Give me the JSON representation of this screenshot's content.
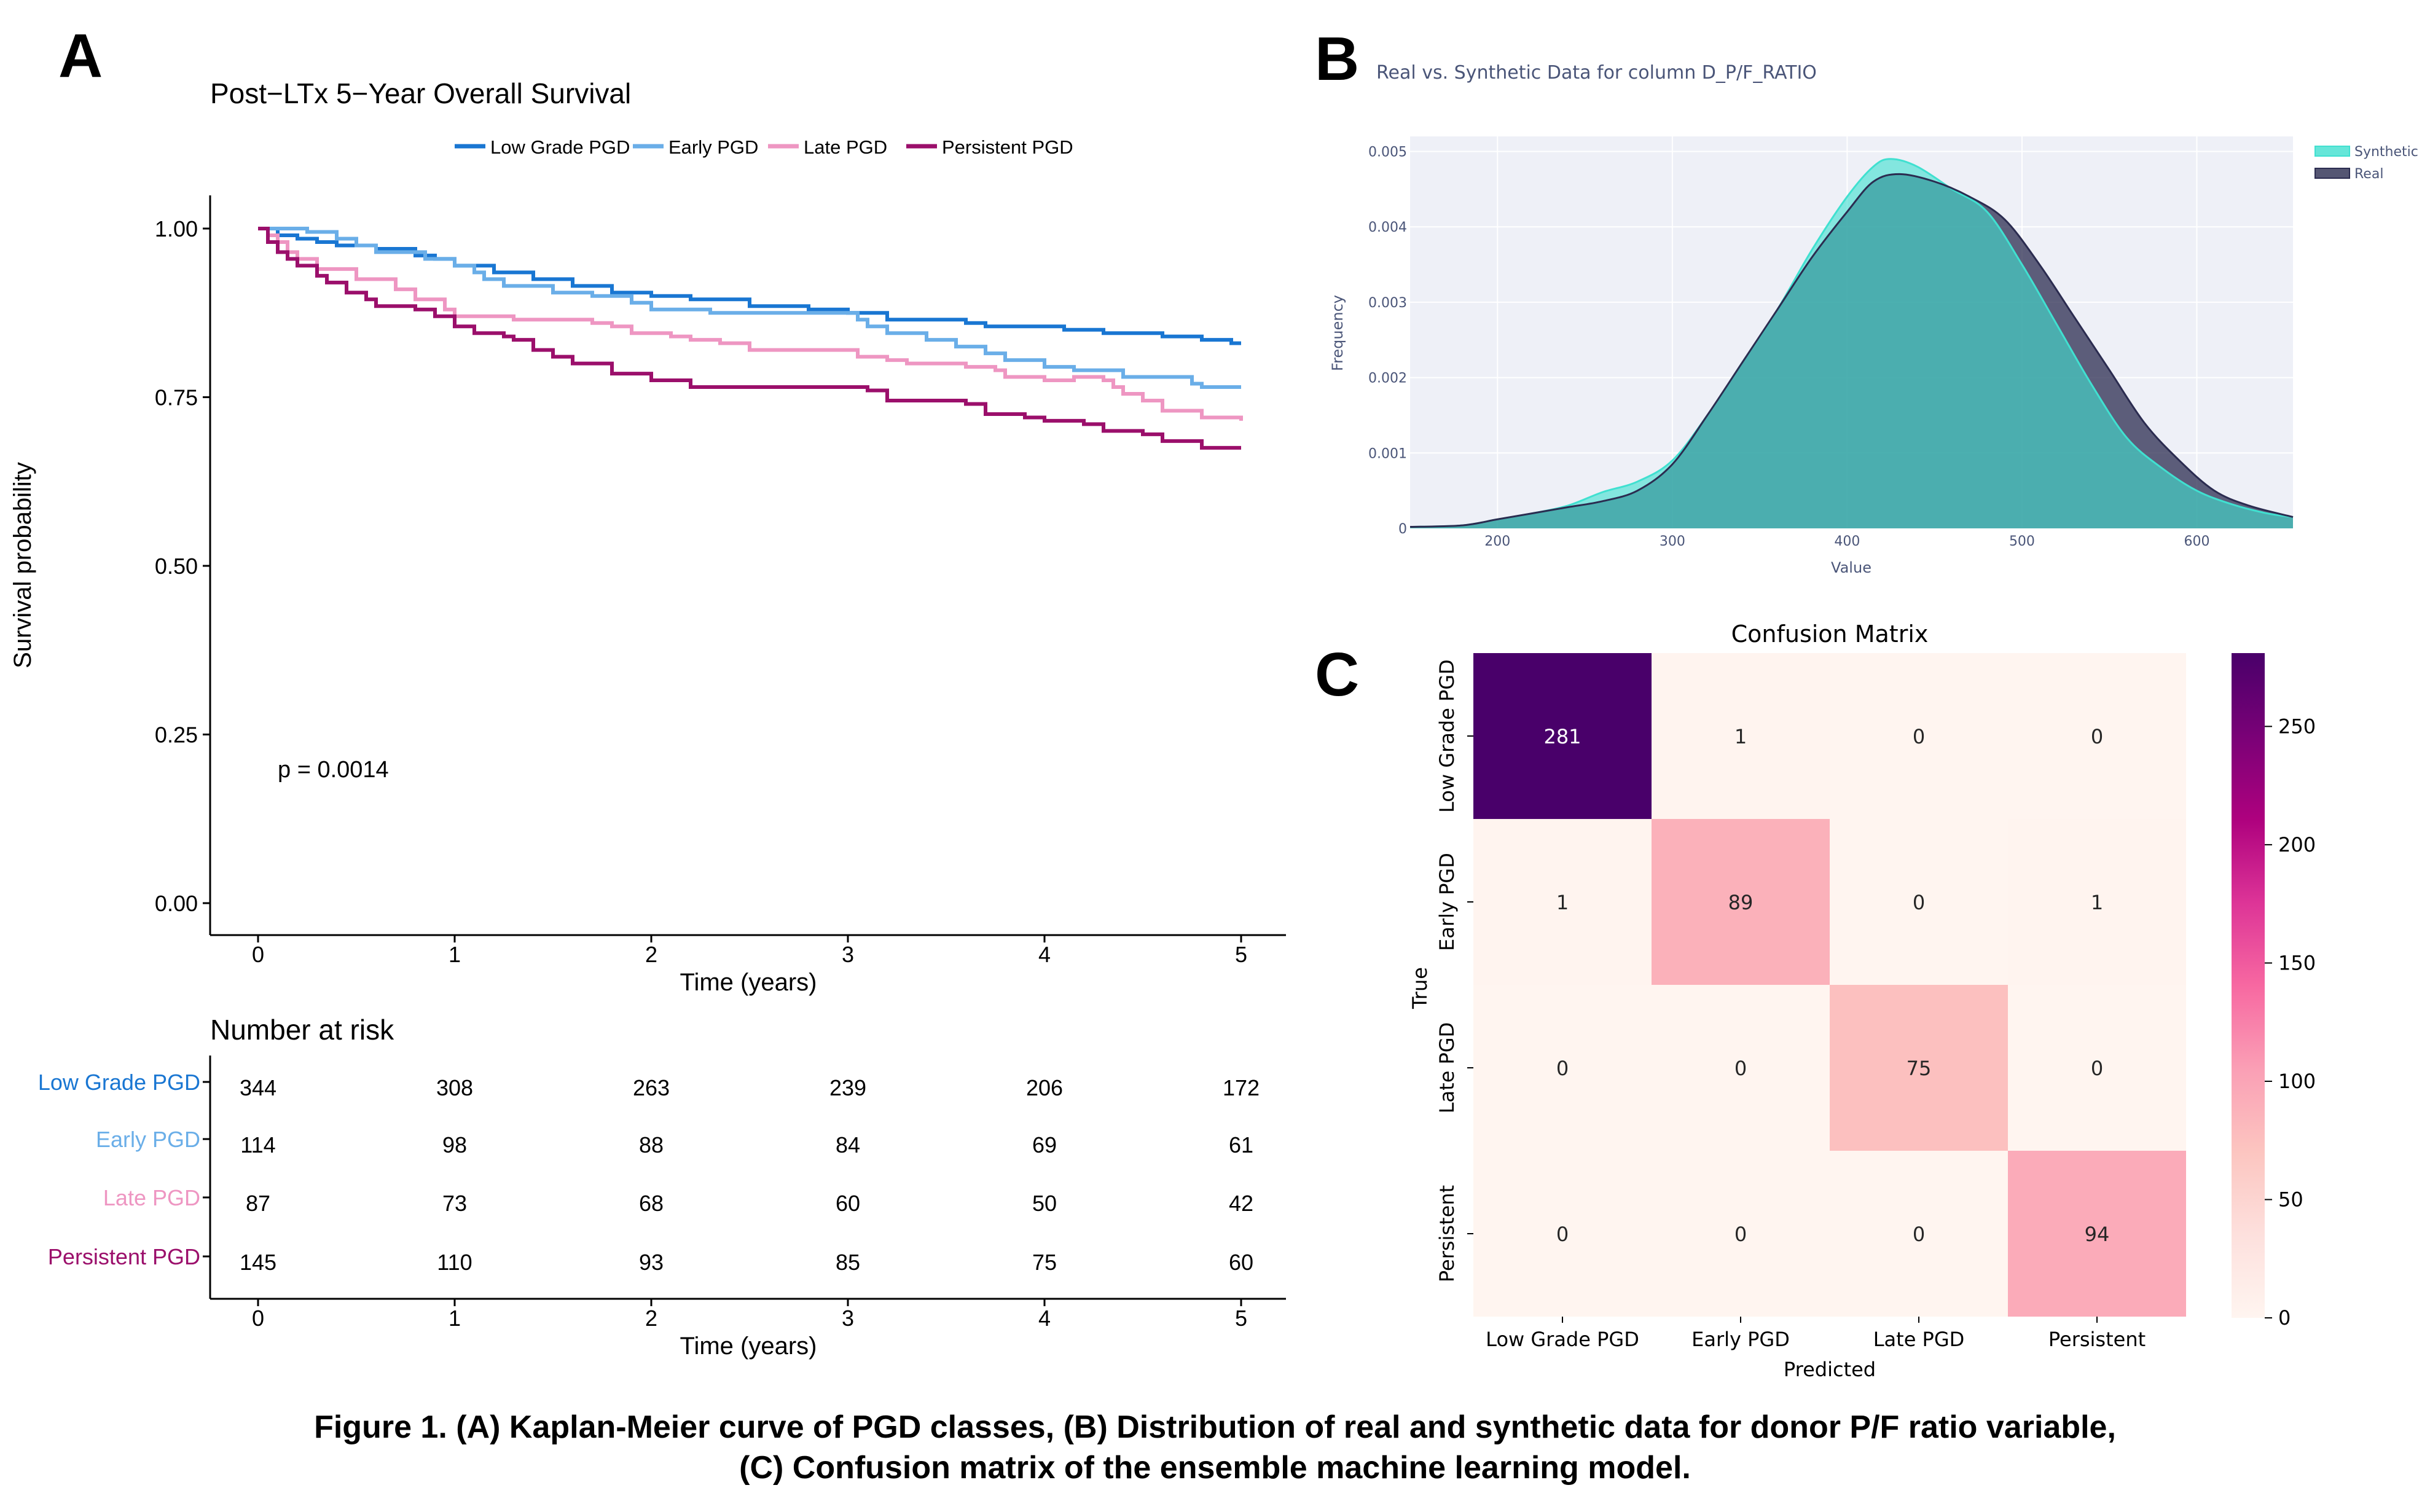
{
  "panel_letters": {
    "a": "A",
    "b": "B",
    "c": "C"
  },
  "caption": {
    "line1": "Figure 1. (A) Kaplan-Meier curve of PGD classes, (B) Distribution of real and synthetic data for donor P/F ratio variable,",
    "line2": "(C) Confusion matrix of the ensemble machine learning model."
  },
  "chart_data": [
    {
      "type": "line",
      "title": "Post−LTx 5−Year Overall Survival",
      "xlabel": "Time (years)",
      "ylabel": "Survival probability",
      "xlim": [
        0,
        5
      ],
      "ylim": [
        0,
        1
      ],
      "x_ticks": [
        "0",
        "1",
        "2",
        "3",
        "4",
        "5"
      ],
      "y_ticks": [
        "0.00",
        "0.25",
        "0.50",
        "0.75",
        "1.00"
      ],
      "legend_position": "top",
      "annotation": "p = 0.0014",
      "series": [
        {
          "name": "Low Grade PGD",
          "color": "#1976d2",
          "points": [
            [
              0,
              1.0
            ],
            [
              0.1,
              0.99
            ],
            [
              0.2,
              0.985
            ],
            [
              0.3,
              0.98
            ],
            [
              0.4,
              0.975
            ],
            [
              0.6,
              0.97
            ],
            [
              0.8,
              0.96
            ],
            [
              0.9,
              0.955
            ],
            [
              1.0,
              0.945
            ],
            [
              1.2,
              0.935
            ],
            [
              1.4,
              0.925
            ],
            [
              1.6,
              0.915
            ],
            [
              1.8,
              0.905
            ],
            [
              2.0,
              0.9
            ],
            [
              2.2,
              0.895
            ],
            [
              2.5,
              0.885
            ],
            [
              2.8,
              0.88
            ],
            [
              3.0,
              0.875
            ],
            [
              3.2,
              0.865
            ],
            [
              3.6,
              0.86
            ],
            [
              3.7,
              0.855
            ],
            [
              4.1,
              0.85
            ],
            [
              4.3,
              0.845
            ],
            [
              4.6,
              0.84
            ],
            [
              4.8,
              0.835
            ],
            [
              4.95,
              0.83
            ],
            [
              5.0,
              0.83
            ]
          ]
        },
        {
          "name": "Early PGD",
          "color": "#6aaee8",
          "points": [
            [
              0,
              1.0
            ],
            [
              0.25,
              0.995
            ],
            [
              0.4,
              0.985
            ],
            [
              0.5,
              0.975
            ],
            [
              0.6,
              0.965
            ],
            [
              0.85,
              0.955
            ],
            [
              1.0,
              0.945
            ],
            [
              1.1,
              0.935
            ],
            [
              1.15,
              0.925
            ],
            [
              1.25,
              0.915
            ],
            [
              1.5,
              0.905
            ],
            [
              1.7,
              0.9
            ],
            [
              1.9,
              0.89
            ],
            [
              2.0,
              0.88
            ],
            [
              2.3,
              0.875
            ],
            [
              3.0,
              0.875
            ],
            [
              3.05,
              0.865
            ],
            [
              3.1,
              0.855
            ],
            [
              3.2,
              0.845
            ],
            [
              3.4,
              0.835
            ],
            [
              3.55,
              0.825
            ],
            [
              3.7,
              0.815
            ],
            [
              3.8,
              0.805
            ],
            [
              4.0,
              0.795
            ],
            [
              4.15,
              0.79
            ],
            [
              4.35,
              0.79
            ],
            [
              4.4,
              0.78
            ],
            [
              4.7,
              0.78
            ],
            [
              4.75,
              0.77
            ],
            [
              4.8,
              0.765
            ],
            [
              5.0,
              0.765
            ]
          ]
        },
        {
          "name": "Late PGD",
          "color": "#ee96c2",
          "points": [
            [
              0,
              1.0
            ],
            [
              0.05,
              0.99
            ],
            [
              0.1,
              0.98
            ],
            [
              0.15,
              0.965
            ],
            [
              0.2,
              0.955
            ],
            [
              0.3,
              0.94
            ],
            [
              0.5,
              0.925
            ],
            [
              0.7,
              0.91
            ],
            [
              0.8,
              0.895
            ],
            [
              0.95,
              0.88
            ],
            [
              1.0,
              0.87
            ],
            [
              1.3,
              0.865
            ],
            [
              1.6,
              0.865
            ],
            [
              1.7,
              0.86
            ],
            [
              1.8,
              0.855
            ],
            [
              1.9,
              0.845
            ],
            [
              2.1,
              0.84
            ],
            [
              2.2,
              0.835
            ],
            [
              2.35,
              0.83
            ],
            [
              2.5,
              0.82
            ],
            [
              3.0,
              0.82
            ],
            [
              3.05,
              0.81
            ],
            [
              3.2,
              0.805
            ],
            [
              3.3,
              0.8
            ],
            [
              3.6,
              0.795
            ],
            [
              3.75,
              0.79
            ],
            [
              3.8,
              0.78
            ],
            [
              4.0,
              0.775
            ],
            [
              4.15,
              0.78
            ],
            [
              4.3,
              0.775
            ],
            [
              4.35,
              0.765
            ],
            [
              4.4,
              0.755
            ],
            [
              4.5,
              0.745
            ],
            [
              4.6,
              0.73
            ],
            [
              4.8,
              0.72
            ],
            [
              5.0,
              0.715
            ]
          ]
        },
        {
          "name": "Persistent PGD",
          "color": "#9b0f6b",
          "points": [
            [
              0,
              1.0
            ],
            [
              0.05,
              0.98
            ],
            [
              0.1,
              0.965
            ],
            [
              0.15,
              0.955
            ],
            [
              0.2,
              0.945
            ],
            [
              0.3,
              0.93
            ],
            [
              0.35,
              0.92
            ],
            [
              0.45,
              0.905
            ],
            [
              0.55,
              0.895
            ],
            [
              0.6,
              0.885
            ],
            [
              0.8,
              0.88
            ],
            [
              0.9,
              0.87
            ],
            [
              1.0,
              0.855
            ],
            [
              1.1,
              0.845
            ],
            [
              1.25,
              0.84
            ],
            [
              1.3,
              0.835
            ],
            [
              1.4,
              0.82
            ],
            [
              1.5,
              0.81
            ],
            [
              1.6,
              0.8
            ],
            [
              1.8,
              0.785
            ],
            [
              2.0,
              0.775
            ],
            [
              2.2,
              0.765
            ],
            [
              2.5,
              0.765
            ],
            [
              3.0,
              0.765
            ],
            [
              3.1,
              0.76
            ],
            [
              3.2,
              0.745
            ],
            [
              3.5,
              0.745
            ],
            [
              3.6,
              0.74
            ],
            [
              3.7,
              0.725
            ],
            [
              3.9,
              0.72
            ],
            [
              4.0,
              0.715
            ],
            [
              4.2,
              0.71
            ],
            [
              4.3,
              0.7
            ],
            [
              4.5,
              0.695
            ],
            [
              4.6,
              0.685
            ],
            [
              4.8,
              0.675
            ],
            [
              5.0,
              0.675
            ]
          ]
        }
      ],
      "risk_table": {
        "title": "Number at risk",
        "xlabel": "Time (years)",
        "x_ticks": [
          "0",
          "1",
          "2",
          "3",
          "4",
          "5"
        ],
        "rows": [
          {
            "label": "Low Grade PGD",
            "color": "#1976d2",
            "values": [
              "344",
              "308",
              "263",
              "239",
              "206",
              "172"
            ]
          },
          {
            "label": "Early PGD",
            "color": "#6aaee8",
            "values": [
              "114",
              "98",
              "88",
              "84",
              "69",
              "61"
            ]
          },
          {
            "label": "Late PGD",
            "color": "#ee96c2",
            "values": [
              "87",
              "73",
              "68",
              "60",
              "50",
              "42"
            ]
          },
          {
            "label": "Persistent PGD",
            "color": "#9b0f6b",
            "values": [
              "145",
              "110",
              "93",
              "85",
              "75",
              "60"
            ]
          }
        ]
      }
    },
    {
      "type": "area",
      "title": "Real vs. Synthetic Data for column D_P/F_RATIO",
      "xlabel": "Value",
      "ylabel": "Frequency",
      "xlim": [
        150,
        655
      ],
      "ylim": [
        0,
        0.0052
      ],
      "x_ticks": [
        "200",
        "300",
        "400",
        "500",
        "600"
      ],
      "y_ticks": [
        "0",
        "0.001",
        "0.002",
        "0.003",
        "0.004",
        "0.005"
      ],
      "legend_position": "top-right",
      "series": [
        {
          "name": "Synthetic",
          "color": "#40e0d0",
          "points": [
            [
              150,
              2e-05
            ],
            [
              180,
              4e-05
            ],
            [
              200,
              0.00012
            ],
            [
              220,
              0.0002
            ],
            [
              240,
              0.0003
            ],
            [
              260,
              0.00048
            ],
            [
              280,
              0.00062
            ],
            [
              300,
              0.0009
            ],
            [
              320,
              0.0015
            ],
            [
              340,
              0.0022
            ],
            [
              360,
              0.0029
            ],
            [
              380,
              0.0037
            ],
            [
              400,
              0.0044
            ],
            [
              415,
              0.0048
            ],
            [
              425,
              0.0049
            ],
            [
              440,
              0.0048
            ],
            [
              460,
              0.0045
            ],
            [
              480,
              0.0042
            ],
            [
              500,
              0.0035
            ],
            [
              520,
              0.0027
            ],
            [
              540,
              0.0019
            ],
            [
              560,
              0.0012
            ],
            [
              580,
              0.0008
            ],
            [
              600,
              0.0005
            ],
            [
              620,
              0.00032
            ],
            [
              640,
              0.0002
            ],
            [
              655,
              0.00015
            ]
          ]
        },
        {
          "name": "Real",
          "color": "#2b2c50",
          "points": [
            [
              150,
              2e-05
            ],
            [
              180,
              4e-05
            ],
            [
              200,
              0.00012
            ],
            [
              220,
              0.0002
            ],
            [
              240,
              0.00028
            ],
            [
              260,
              0.00036
            ],
            [
              280,
              0.0005
            ],
            [
              300,
              0.00085
            ],
            [
              320,
              0.0015
            ],
            [
              340,
              0.0022
            ],
            [
              360,
              0.0029
            ],
            [
              380,
              0.0036
            ],
            [
              400,
              0.0042
            ],
            [
              415,
              0.0046
            ],
            [
              430,
              0.0047
            ],
            [
              450,
              0.0046
            ],
            [
              470,
              0.0044
            ],
            [
              490,
              0.0041
            ],
            [
              510,
              0.0035
            ],
            [
              530,
              0.0028
            ],
            [
              550,
              0.0021
            ],
            [
              570,
              0.0014
            ],
            [
              590,
              0.0009
            ],
            [
              610,
              0.0005
            ],
            [
              630,
              0.0003
            ],
            [
              655,
              0.00015
            ]
          ]
        }
      ]
    },
    {
      "type": "heatmap",
      "title": "Confusion Matrix",
      "xlabel": "Predicted",
      "ylabel": "True",
      "categories_x": [
        "Low Grade PGD",
        "Early PGD",
        "Late PGD",
        "Persistent"
      ],
      "categories_y": [
        "Low Grade PGD",
        "Early PGD",
        "Late PGD",
        "Persistent"
      ],
      "values": [
        [
          281,
          1,
          0,
          0
        ],
        [
          1,
          89,
          0,
          1
        ],
        [
          0,
          0,
          75,
          0
        ],
        [
          0,
          0,
          0,
          94
        ]
      ],
      "labels": [
        [
          "281",
          "1",
          "0",
          "0"
        ],
        [
          "1",
          "89",
          "0",
          "1"
        ],
        [
          "0",
          "0",
          "75",
          "0"
        ],
        [
          "0",
          "0",
          "0",
          "94"
        ]
      ],
      "colorbar": {
        "min": 0,
        "max": 281,
        "ticks": [
          "0",
          "50",
          "100",
          "150",
          "200",
          "250"
        ],
        "tick_values": [
          0,
          50,
          100,
          150,
          200,
          250
        ]
      },
      "colormap": [
        "#fff5f0",
        "#fde0dd",
        "#fcc5c0",
        "#fa9fb5",
        "#f768a1",
        "#dd3497",
        "#ae017e",
        "#7a0177",
        "#49006a"
      ]
    }
  ]
}
